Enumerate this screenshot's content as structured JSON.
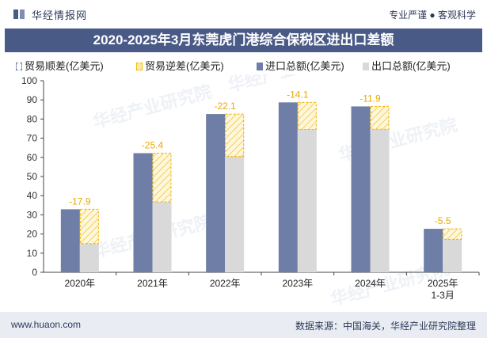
{
  "header": {
    "brand": "华经情报网",
    "tagline": "专业严谨 ● 客观科学"
  },
  "title": "2020-2025年3月东莞虎门港综合保税区进出口差额",
  "footer": {
    "site": "www.huaon.com",
    "source": "数据来源：中国海关，华经产业研究院整理"
  },
  "watermark": "华经产业研究院",
  "watermark_url": "www.huaon.com",
  "colors": {
    "import": "#6e7ea6",
    "export": "#d9d9d9",
    "deficit_stroke": "#f2b400",
    "deficit_fill": "#fbe9a8",
    "label": "#e8a900",
    "title_bg": "#4a5a86"
  },
  "chart_data": {
    "type": "bar",
    "title": "2020-2025年3月东莞虎门港综合保税区进出口差额",
    "categories": [
      "2020年",
      "2021年",
      "2022年",
      "2023年",
      "2024年",
      "2025年 1-3月"
    ],
    "series": [
      {
        "name": "贸易顺差(亿美元)",
        "values": [
          0,
          0,
          0,
          0,
          0,
          0
        ]
      },
      {
        "name": "贸易逆差(亿美元)",
        "values": [
          -17.9,
          -25.4,
          -22.1,
          -14.1,
          -11.9,
          -5.5
        ]
      },
      {
        "name": "进口总额(亿美元)",
        "values": [
          32.9,
          62.2,
          82.6,
          88.7,
          86.6,
          22.7
        ]
      },
      {
        "name": "出口总额(亿美元)",
        "values": [
          15.0,
          36.8,
          60.5,
          74.6,
          74.7,
          17.2
        ]
      }
    ],
    "data_labels": [
      "-17.9",
      "-25.4",
      "-22.1",
      "-14.1",
      "-11.9",
      "-5.5"
    ],
    "ylim": [
      0,
      100
    ],
    "yticks": [
      0,
      10,
      20,
      30,
      40,
      50,
      60,
      70,
      80,
      90,
      100
    ],
    "xlabel": "",
    "ylabel": "",
    "legend": "top"
  }
}
